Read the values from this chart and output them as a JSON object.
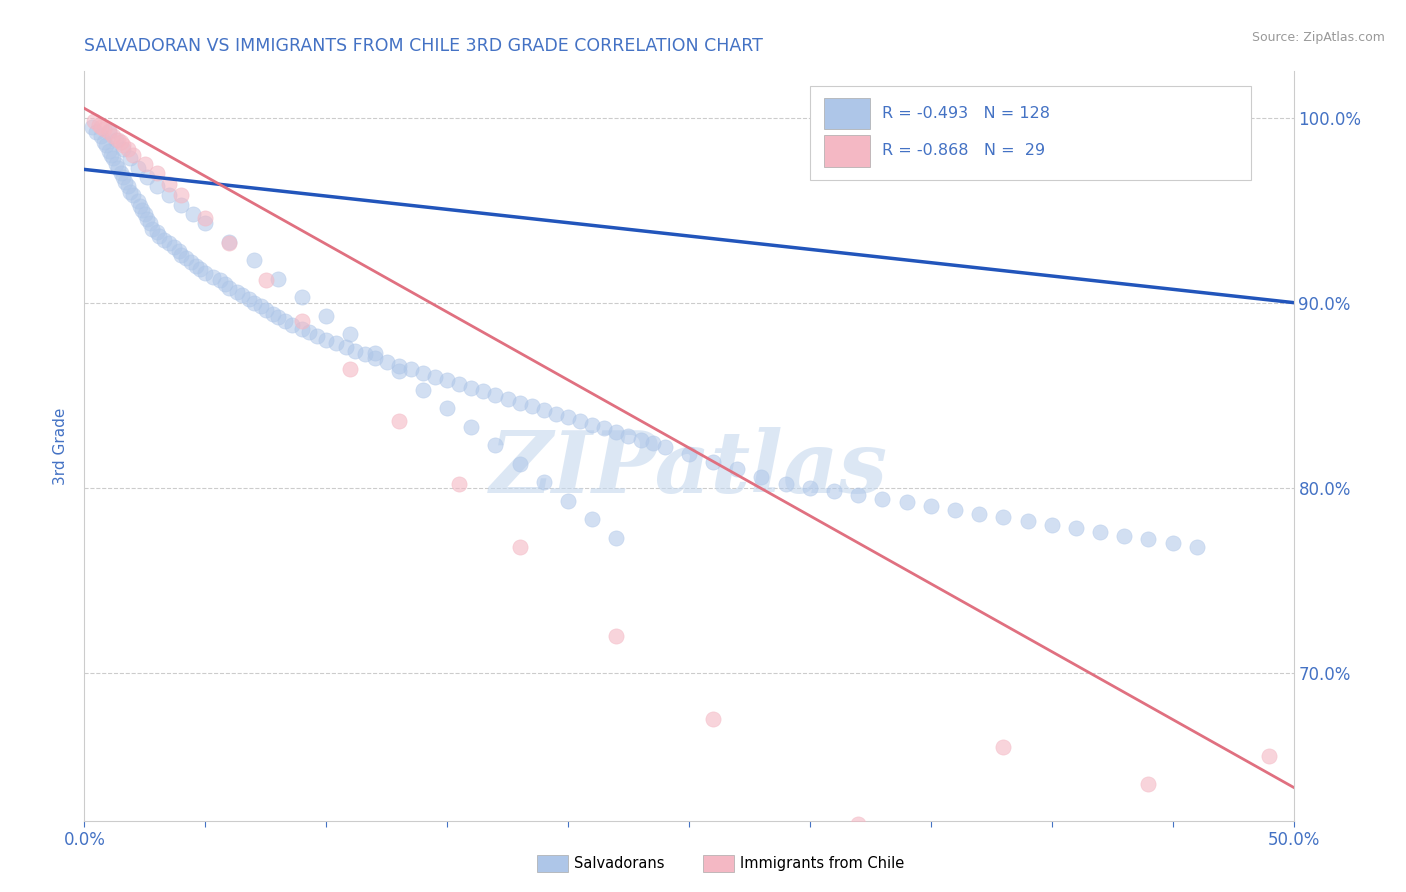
{
  "title": "SALVADORAN VS IMMIGRANTS FROM CHILE 3RD GRADE CORRELATION CHART",
  "source": "Source: ZipAtlas.com",
  "ylabel": "3rd Grade",
  "legend_bottom1": "Salvadorans",
  "legend_bottom2": "Immigrants from Chile",
  "blue_fill": "#aec6e8",
  "pink_fill": "#f4b8c4",
  "blue_edge": "#4472c4",
  "pink_edge": "#e07080",
  "blue_line_color": "#2255bb",
  "pink_line_color": "#e07080",
  "title_color": "#4472c4",
  "axis_label_color": "#4472c4",
  "watermark_color": "#c5d8ee",
  "watermark_text": "ZIPatlas",
  "blue_R": -0.493,
  "blue_N": 128,
  "pink_R": -0.868,
  "pink_N": 29,
  "xlim": [
    0.0,
    0.5
  ],
  "ylim": [
    0.62,
    1.025
  ],
  "blue_trend_x": [
    0.0,
    0.5
  ],
  "blue_trend_y": [
    0.972,
    0.9
  ],
  "pink_trend_x": [
    0.0,
    0.5
  ],
  "pink_trend_y": [
    1.005,
    0.638
  ],
  "blue_scatter_x": [
    0.003,
    0.005,
    0.007,
    0.008,
    0.009,
    0.01,
    0.011,
    0.012,
    0.013,
    0.014,
    0.015,
    0.016,
    0.017,
    0.018,
    0.019,
    0.02,
    0.022,
    0.023,
    0.024,
    0.025,
    0.026,
    0.027,
    0.028,
    0.03,
    0.031,
    0.033,
    0.035,
    0.037,
    0.039,
    0.04,
    0.042,
    0.044,
    0.046,
    0.048,
    0.05,
    0.053,
    0.056,
    0.058,
    0.06,
    0.063,
    0.065,
    0.068,
    0.07,
    0.073,
    0.075,
    0.078,
    0.08,
    0.083,
    0.086,
    0.09,
    0.093,
    0.096,
    0.1,
    0.104,
    0.108,
    0.112,
    0.116,
    0.12,
    0.125,
    0.13,
    0.135,
    0.14,
    0.145,
    0.15,
    0.155,
    0.16,
    0.165,
    0.17,
    0.175,
    0.18,
    0.185,
    0.19,
    0.195,
    0.2,
    0.205,
    0.21,
    0.215,
    0.22,
    0.225,
    0.23,
    0.235,
    0.24,
    0.25,
    0.26,
    0.27,
    0.28,
    0.29,
    0.3,
    0.31,
    0.32,
    0.33,
    0.34,
    0.35,
    0.36,
    0.37,
    0.38,
    0.39,
    0.4,
    0.41,
    0.42,
    0.43,
    0.44,
    0.45,
    0.46,
    0.01,
    0.013,
    0.016,
    0.019,
    0.022,
    0.026,
    0.03,
    0.035,
    0.04,
    0.045,
    0.05,
    0.06,
    0.07,
    0.08,
    0.09,
    0.1,
    0.11,
    0.12,
    0.13,
    0.14,
    0.15,
    0.16,
    0.17,
    0.18,
    0.19,
    0.2,
    0.21,
    0.22
  ],
  "blue_scatter_y": [
    0.995,
    0.992,
    0.99,
    0.987,
    0.985,
    0.982,
    0.98,
    0.978,
    0.975,
    0.973,
    0.97,
    0.968,
    0.965,
    0.963,
    0.96,
    0.958,
    0.955,
    0.952,
    0.95,
    0.948,
    0.945,
    0.943,
    0.94,
    0.938,
    0.936,
    0.934,
    0.932,
    0.93,
    0.928,
    0.926,
    0.924,
    0.922,
    0.92,
    0.918,
    0.916,
    0.914,
    0.912,
    0.91,
    0.908,
    0.906,
    0.904,
    0.902,
    0.9,
    0.898,
    0.896,
    0.894,
    0.892,
    0.89,
    0.888,
    0.886,
    0.884,
    0.882,
    0.88,
    0.878,
    0.876,
    0.874,
    0.872,
    0.87,
    0.868,
    0.866,
    0.864,
    0.862,
    0.86,
    0.858,
    0.856,
    0.854,
    0.852,
    0.85,
    0.848,
    0.846,
    0.844,
    0.842,
    0.84,
    0.838,
    0.836,
    0.834,
    0.832,
    0.83,
    0.828,
    0.826,
    0.824,
    0.822,
    0.818,
    0.814,
    0.81,
    0.806,
    0.802,
    0.8,
    0.798,
    0.796,
    0.794,
    0.792,
    0.79,
    0.788,
    0.786,
    0.784,
    0.782,
    0.78,
    0.778,
    0.776,
    0.774,
    0.772,
    0.77,
    0.768,
    0.993,
    0.988,
    0.983,
    0.978,
    0.973,
    0.968,
    0.963,
    0.958,
    0.953,
    0.948,
    0.943,
    0.933,
    0.923,
    0.913,
    0.903,
    0.893,
    0.883,
    0.873,
    0.863,
    0.853,
    0.843,
    0.833,
    0.823,
    0.813,
    0.803,
    0.793,
    0.783,
    0.773
  ],
  "pink_scatter_x": [
    0.004,
    0.006,
    0.008,
    0.01,
    0.012,
    0.014,
    0.016,
    0.018,
    0.02,
    0.025,
    0.03,
    0.035,
    0.04,
    0.05,
    0.06,
    0.075,
    0.09,
    0.11,
    0.13,
    0.155,
    0.18,
    0.22,
    0.26,
    0.32,
    0.38,
    0.44,
    0.49,
    0.007,
    0.015
  ],
  "pink_scatter_y": [
    0.998,
    0.996,
    0.994,
    0.992,
    0.99,
    0.988,
    0.985,
    0.983,
    0.98,
    0.975,
    0.97,
    0.964,
    0.958,
    0.946,
    0.932,
    0.912,
    0.89,
    0.864,
    0.836,
    0.802,
    0.768,
    0.72,
    0.675,
    0.618,
    0.66,
    0.64,
    0.655,
    0.995,
    0.987
  ]
}
